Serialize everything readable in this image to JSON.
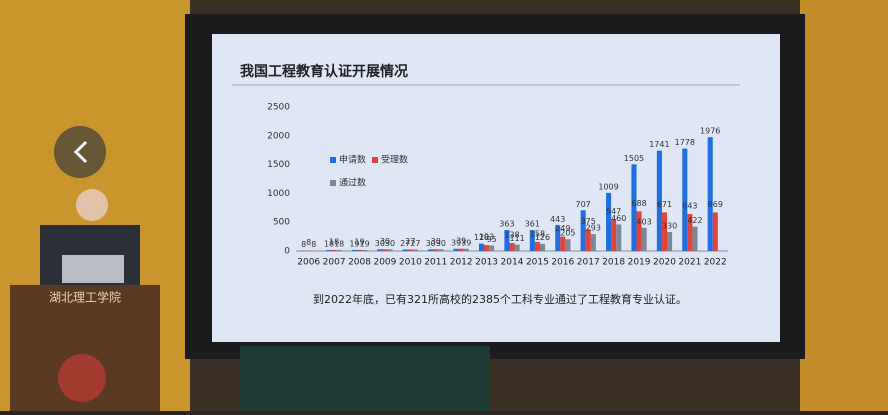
{
  "chart_data": {
    "type": "bar",
    "title": "我国工程教育认证开展情况",
    "caption": "到2022年底，已有321所高校的2385个工科专业通过了工程教育专业认证。",
    "podium_text": "湖北理工学院",
    "categories": [
      "2006",
      "2007",
      "2008",
      "2009",
      "2010",
      "2011",
      "2012",
      "2013",
      "2014",
      "2015",
      "2016",
      "2017",
      "2018",
      "2019",
      "2020",
      "2021",
      "2022"
    ],
    "series": [
      {
        "name": "申请数",
        "color": "#1f6fe0",
        "values": [
          8,
          18,
          19,
          30,
          27,
          30,
          39,
          128,
          363,
          361,
          443,
          707,
          1009,
          1505,
          1741,
          1778,
          1976
        ]
      },
      {
        "name": "受理数",
        "color": "#e0443a",
        "values": [
          8,
          18,
          19,
          30,
          27,
          30,
          39,
          103,
          138,
          158,
          249,
          375,
          547,
          688,
          671,
          643,
          669
        ]
      },
      {
        "name": "通过数",
        "color": "#7f8694",
        "values": [
          8,
          18,
          19,
          30,
          27,
          30,
          39,
          95,
          111,
          126,
          205,
          293,
          460,
          403,
          330,
          422,
          null
        ]
      }
    ],
    "ylim": [
      0,
      2500
    ],
    "yticks": [
      0,
      500,
      1000,
      1500,
      2000,
      2500
    ],
    "grid": false
  }
}
